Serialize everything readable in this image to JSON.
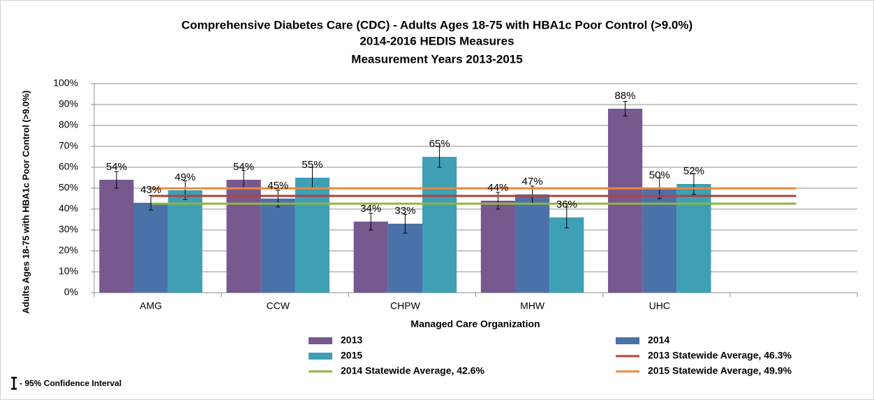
{
  "chart_data": {
    "type": "bar",
    "title": [
      "Comprehensive Diabetes Care (CDC) - Adults Ages 18-75 with HBA1c Poor Control (>9.0%)",
      "2014-2016 HEDIS Measures",
      "Measurement Years 2013-2015"
    ],
    "x_label": "Managed Care Organization",
    "y_label": "Adults Ages 18-75 with HBA1c Poor Control (>9.0%)",
    "categories": [
      "AMG",
      "CCW",
      "CHPW",
      "MHW",
      "UHC",
      null
    ],
    "series": [
      {
        "name": "2013",
        "color": "#77588f",
        "values": [
          54,
          54,
          34,
          44,
          88,
          null
        ],
        "value_labels": [
          "54%",
          "54%",
          "34%",
          "44%",
          "88%",
          null
        ],
        "errors": [
          4,
          4.5,
          4,
          4,
          3.5,
          null
        ]
      },
      {
        "name": "2014",
        "color": "#4a72a8",
        "values": [
          43,
          45,
          33,
          47,
          50,
          null
        ],
        "value_labels": [
          "43%",
          "45%",
          "33%",
          "47%",
          "50%",
          null
        ],
        "errors": [
          3.5,
          4,
          4.5,
          4,
          5,
          null
        ]
      },
      {
        "name": "2015",
        "color": "#3fa0b5",
        "values": [
          49,
          55,
          65,
          36,
          52,
          null
        ],
        "value_labels": [
          "49%",
          "55%",
          "65%",
          "36%",
          "52%",
          null
        ],
        "errors": [
          4.5,
          5,
          5,
          5,
          5,
          null
        ]
      }
    ],
    "reference_lines": [
      {
        "name": "2013 Statewide Average, 46.3%",
        "color": "#b5413a",
        "value": 46.3
      },
      {
        "name": "2014 Statewide Average, 42.6%",
        "color": "#8fb545",
        "value": 42.6
      },
      {
        "name": "2015 Statewide Average, 49.9%",
        "color": "#ec8a3c",
        "value": 49.9
      }
    ],
    "error_bar_note": "- 95% Confidence Interval",
    "ylim": [
      0,
      100
    ],
    "yticks": [
      {
        "value": 0,
        "label": "0%"
      },
      {
        "value": 10,
        "label": "10%"
      },
      {
        "value": 20,
        "label": "20%"
      },
      {
        "value": 30,
        "label": "30%"
      },
      {
        "value": 40,
        "label": "40%"
      },
      {
        "value": 50,
        "label": "50%"
      },
      {
        "value": 60,
        "label": "60%"
      },
      {
        "value": 70,
        "label": "70%"
      },
      {
        "value": 80,
        "label": "80%"
      },
      {
        "value": 90,
        "label": "90%"
      },
      {
        "value": 100,
        "label": "100%"
      }
    ],
    "grid": true
  }
}
